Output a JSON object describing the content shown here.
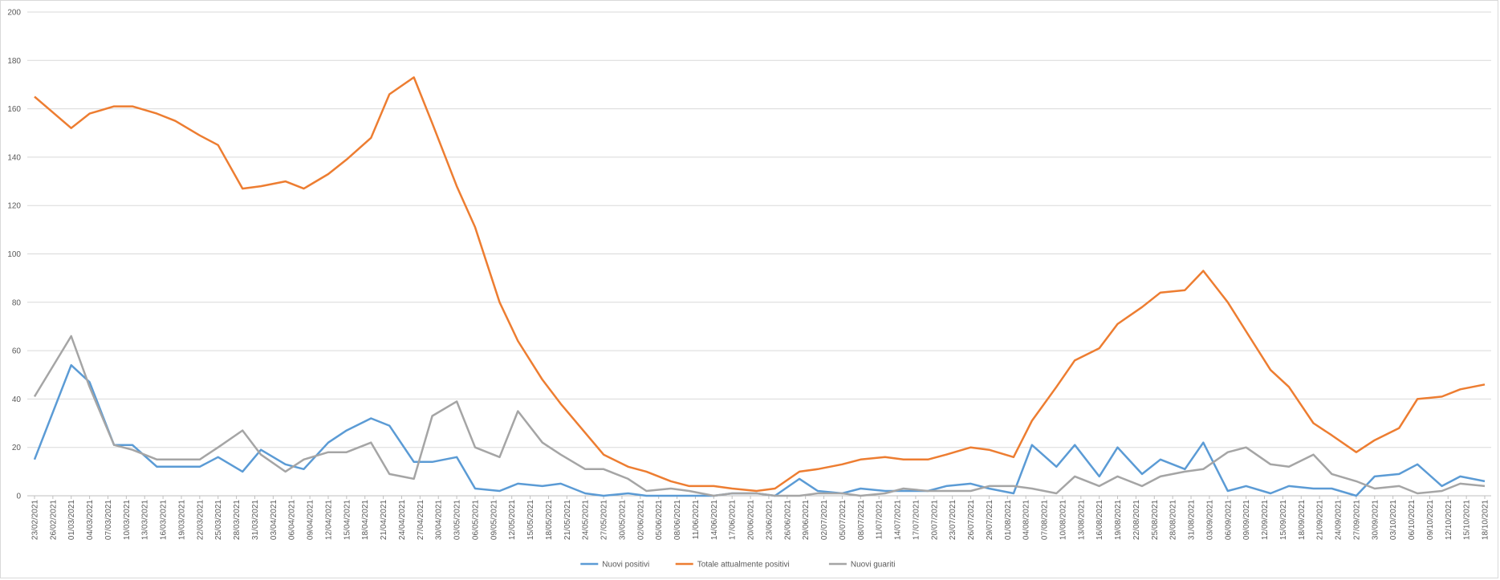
{
  "chart_data": {
    "type": "line",
    "x": [
      "23/02/2021",
      "01/03/2021",
      "04/03/2021",
      "08/03/2021",
      "11/03/2021",
      "15/03/2021",
      "18/03/2021",
      "22/03/2021",
      "25/03/2021",
      "29/03/2021",
      "01/04/2021",
      "05/04/2021",
      "08/04/2021",
      "12/04/2021",
      "15/04/2021",
      "19/04/2021",
      "22/04/2021",
      "26/04/2021",
      "29/04/2021",
      "03/05/2021",
      "06/05/2021",
      "10/05/2021",
      "13/05/2021",
      "17/05/2021",
      "20/05/2021",
      "24/05/2021",
      "27/05/2021",
      "31/05/2021",
      "03/06/2021",
      "07/06/2021",
      "10/06/2021",
      "14/06/2021",
      "17/06/2021",
      "21/06/2021",
      "24/06/2021",
      "28/06/2021",
      "01/07/2021",
      "05/07/2021",
      "08/07/2021",
      "12/07/2021",
      "15/07/2021",
      "19/07/2021",
      "22/07/2021",
      "26/07/2021",
      "29/07/2021",
      "02/08/2021",
      "05/08/2021",
      "09/08/2021",
      "12/08/2021",
      "16/08/2021",
      "19/08/2021",
      "23/08/2021",
      "26/08/2021",
      "30/08/2021",
      "02/09/2021",
      "06/09/2021",
      "09/09/2021",
      "13/09/2021",
      "16/09/2021",
      "20/09/2021",
      "23/09/2021",
      "27/09/2021",
      "30/09/2021",
      "04/10/2021",
      "07/10/2021",
      "11/10/2021",
      "14/10/2021",
      "18/10/2021"
    ],
    "series": [
      {
        "name": "Nuovi positivi",
        "color": "#5b9bd5",
        "values": [
          15,
          54,
          47,
          21,
          21,
          12,
          12,
          12,
          16,
          10,
          19,
          13,
          11,
          22,
          27,
          32,
          29,
          14,
          14,
          16,
          3,
          2,
          5,
          4,
          5,
          1,
          0,
          1,
          0,
          0,
          0,
          0,
          1,
          1,
          0,
          7,
          2,
          1,
          3,
          2,
          2,
          2,
          4,
          5,
          3,
          1,
          21,
          12,
          21,
          8,
          20,
          9,
          15,
          11,
          22,
          2,
          4,
          1,
          4,
          3,
          3,
          0,
          8,
          9,
          13,
          4,
          8,
          6
        ]
      },
      {
        "name": "Totale attualmente positivi",
        "color": "#ed7d31",
        "values": [
          165,
          152,
          158,
          161,
          161,
          158,
          155,
          149,
          145,
          127,
          128,
          130,
          127,
          133,
          139,
          148,
          166,
          173,
          154,
          128,
          111,
          80,
          64,
          48,
          38,
          26,
          17,
          12,
          10,
          6,
          4,
          4,
          3,
          2,
          3,
          10,
          11,
          13,
          15,
          16,
          15,
          15,
          17,
          20,
          19,
          16,
          31,
          45,
          56,
          61,
          71,
          78,
          84,
          85,
          93,
          80,
          68,
          52,
          45,
          30,
          25,
          18,
          23,
          28,
          40,
          41,
          44,
          46
        ]
      },
      {
        "name": "Nuovi guariti",
        "color": "#a5a5a5",
        "values": [
          41,
          66,
          45,
          21,
          19,
          15,
          15,
          15,
          20,
          27,
          17,
          10,
          15,
          18,
          18,
          22,
          9,
          7,
          33,
          39,
          20,
          16,
          35,
          22,
          17,
          11,
          11,
          7,
          2,
          3,
          2,
          0,
          1,
          1,
          0,
          0,
          1,
          1,
          0,
          1,
          3,
          2,
          2,
          2,
          4,
          4,
          3,
          1,
          8,
          4,
          8,
          4,
          8,
          10,
          11,
          18,
          20,
          13,
          12,
          17,
          9,
          6,
          3,
          4,
          1,
          2,
          5,
          4
        ]
      }
    ],
    "xlim": [
      "23/02/2021",
      "18/10/2021"
    ],
    "xticks": [
      "23/02/2021",
      "26/02/2021",
      "01/03/2021",
      "04/03/2021",
      "07/03/2021",
      "10/03/2021",
      "13/03/2021",
      "16/03/2021",
      "19/03/2021",
      "22/03/2021",
      "25/03/2021",
      "28/03/2021",
      "31/03/2021",
      "03/04/2021",
      "06/04/2021",
      "09/04/2021",
      "12/04/2021",
      "15/04/2021",
      "18/04/2021",
      "21/04/2021",
      "24/04/2021",
      "27/04/2021",
      "30/04/2021",
      "03/05/2021",
      "06/05/2021",
      "09/05/2021",
      "12/05/2021",
      "15/05/2021",
      "18/05/2021",
      "21/05/2021",
      "24/05/2021",
      "27/05/2021",
      "30/05/2021",
      "02/06/2021",
      "05/06/2021",
      "08/06/2021",
      "11/06/2021",
      "14/06/2021",
      "17/06/2021",
      "20/06/2021",
      "23/06/2021",
      "26/06/2021",
      "29/06/2021",
      "02/07/2021",
      "05/07/2021",
      "08/07/2021",
      "11/07/2021",
      "14/07/2021",
      "17/07/2021",
      "20/07/2021",
      "23/07/2021",
      "26/07/2021",
      "29/07/2021",
      "01/08/2021",
      "04/08/2021",
      "07/08/2021",
      "10/08/2021",
      "13/08/2021",
      "16/08/2021",
      "19/08/2021",
      "22/08/2021",
      "25/08/2021",
      "28/08/2021",
      "31/08/2021",
      "03/09/2021",
      "06/09/2021",
      "09/09/2021",
      "12/09/2021",
      "15/09/2021",
      "18/09/2021",
      "21/09/2021",
      "24/09/2021",
      "27/09/2021",
      "30/09/2021",
      "03/10/2021",
      "06/10/2021",
      "09/10/2021",
      "12/10/2021",
      "15/10/2021",
      "18/10/2021"
    ],
    "ylim": [
      0,
      200
    ],
    "yticks": [
      0,
      20,
      40,
      60,
      80,
      100,
      120,
      140,
      160,
      180,
      200
    ],
    "grid": true,
    "legend": "bottom"
  }
}
